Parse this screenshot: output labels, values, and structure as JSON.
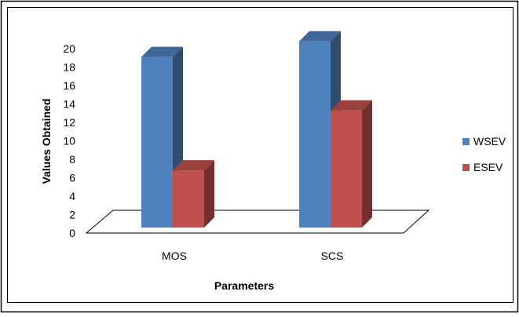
{
  "chart_data": {
    "type": "bar",
    "style": "3d-clustered-column",
    "title": "",
    "xlabel": "Parameters",
    "ylabel": "Values Obtained",
    "categories": [
      "MOS",
      "SCS"
    ],
    "series": [
      {
        "name": "WSEV",
        "values": [
          18.5,
          20.2
        ],
        "color": "#4F81BD"
      },
      {
        "name": "ESEV",
        "values": [
          6.2,
          12.7
        ],
        "color": "#C0504D"
      }
    ],
    "ylim": [
      0,
      20
    ],
    "yticks": [
      "0",
      "2",
      "4",
      "6",
      "8",
      "10",
      "12",
      "14",
      "16",
      "18",
      "20"
    ],
    "grid": false,
    "legend_position": "right"
  }
}
